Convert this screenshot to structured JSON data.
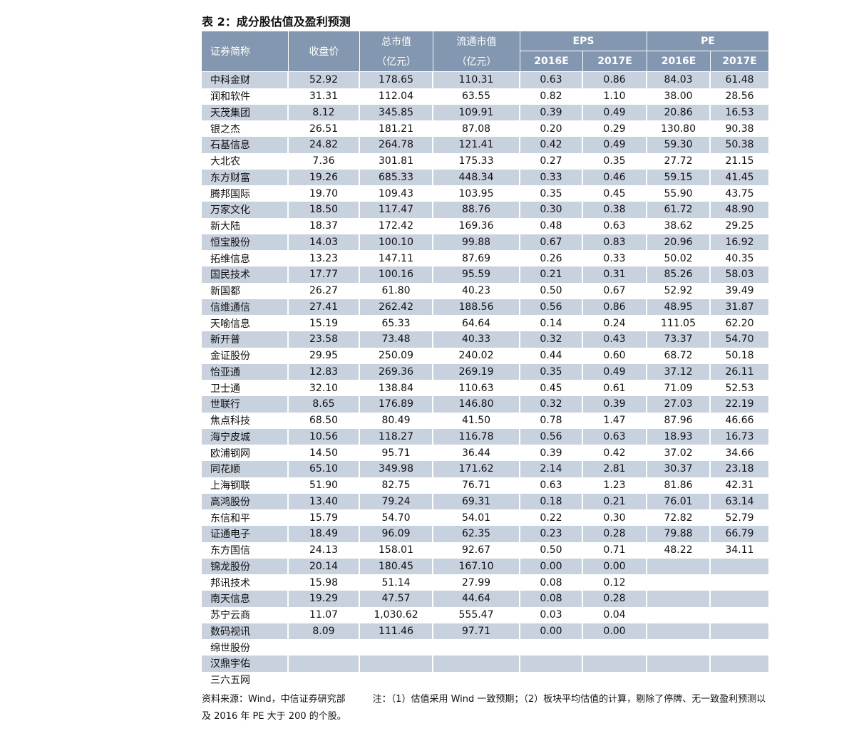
{
  "title": "表 2：成分股估值及盈利预测",
  "table": {
    "header": {
      "name": "证券简称",
      "close": "收盘价",
      "total_cap": [
        "总市值",
        "（亿元）"
      ],
      "float_cap": [
        "流通市值",
        "（亿元）"
      ],
      "eps": {
        "label": "EPS",
        "years": [
          "2016E",
          "2017E"
        ]
      },
      "pe": {
        "label": "PE",
        "years": [
          "2016E",
          "2017E"
        ]
      }
    },
    "rows": [
      [
        "中科金财",
        "52.92",
        "178.65",
        "110.31",
        "0.63",
        "0.86",
        "84.03",
        "61.48"
      ],
      [
        "润和软件",
        "31.31",
        "112.04",
        "63.55",
        "0.82",
        "1.10",
        "38.00",
        "28.56"
      ],
      [
        "天茂集团",
        "8.12",
        "345.85",
        "109.91",
        "0.39",
        "0.49",
        "20.86",
        "16.53"
      ],
      [
        "银之杰",
        "26.51",
        "181.21",
        "87.08",
        "0.20",
        "0.29",
        "130.80",
        "90.38"
      ],
      [
        "石基信息",
        "24.82",
        "264.78",
        "121.41",
        "0.42",
        "0.49",
        "59.30",
        "50.38"
      ],
      [
        "大北农",
        "7.36",
        "301.81",
        "175.33",
        "0.27",
        "0.35",
        "27.72",
        "21.15"
      ],
      [
        "东方财富",
        "19.26",
        "685.33",
        "448.34",
        "0.33",
        "0.46",
        "59.15",
        "41.45"
      ],
      [
        "腾邦国际",
        "19.70",
        "109.43",
        "103.95",
        "0.35",
        "0.45",
        "55.90",
        "43.75"
      ],
      [
        "万家文化",
        "18.50",
        "117.47",
        "88.76",
        "0.30",
        "0.38",
        "61.72",
        "48.90"
      ],
      [
        "新大陆",
        "18.37",
        "172.42",
        "169.36",
        "0.48",
        "0.63",
        "38.62",
        "29.25"
      ],
      [
        "恒宝股份",
        "14.03",
        "100.10",
        "99.88",
        "0.67",
        "0.83",
        "20.96",
        "16.92"
      ],
      [
        "拓维信息",
        "13.23",
        "147.11",
        "87.69",
        "0.26",
        "0.33",
        "50.02",
        "40.35"
      ],
      [
        "国民技术",
        "17.77",
        "100.16",
        "95.59",
        "0.21",
        "0.31",
        "85.26",
        "58.03"
      ],
      [
        "新国都",
        "26.27",
        "61.80",
        "40.23",
        "0.50",
        "0.67",
        "52.92",
        "39.49"
      ],
      [
        "信维通信",
        "27.41",
        "262.42",
        "188.56",
        "0.56",
        "0.86",
        "48.95",
        "31.87"
      ],
      [
        "天喻信息",
        "15.19",
        "65.33",
        "64.64",
        "0.14",
        "0.24",
        "111.05",
        "62.20"
      ],
      [
        "新开普",
        "23.58",
        "73.48",
        "40.33",
        "0.32",
        "0.43",
        "73.37",
        "54.70"
      ],
      [
        "金证股份",
        "29.95",
        "250.09",
        "240.02",
        "0.44",
        "0.60",
        "68.72",
        "50.18"
      ],
      [
        "怡亚通",
        "12.83",
        "269.36",
        "269.19",
        "0.35",
        "0.49",
        "37.12",
        "26.11"
      ],
      [
        "卫士通",
        "32.10",
        "138.84",
        "110.63",
        "0.45",
        "0.61",
        "71.09",
        "52.53"
      ],
      [
        "世联行",
        "8.65",
        "176.89",
        "146.80",
        "0.32",
        "0.39",
        "27.03",
        "22.19"
      ],
      [
        "焦点科技",
        "68.50",
        "80.49",
        "41.50",
        "0.78",
        "1.47",
        "87.96",
        "46.66"
      ],
      [
        "海宁皮城",
        "10.56",
        "118.27",
        "116.78",
        "0.56",
        "0.63",
        "18.93",
        "16.73"
      ],
      [
        "欧浦钢网",
        "14.50",
        "95.71",
        "36.44",
        "0.39",
        "0.42",
        "37.02",
        "34.66"
      ],
      [
        "同花顺",
        "65.10",
        "349.98",
        "171.62",
        "2.14",
        "2.81",
        "30.37",
        "23.18"
      ],
      [
        "上海钢联",
        "51.90",
        "82.75",
        "76.71",
        "0.63",
        "1.23",
        "81.86",
        "42.31"
      ],
      [
        "高鸿股份",
        "13.40",
        "79.24",
        "69.31",
        "0.18",
        "0.21",
        "76.01",
        "63.14"
      ],
      [
        "东信和平",
        "15.79",
        "54.70",
        "54.01",
        "0.22",
        "0.30",
        "72.82",
        "52.79"
      ],
      [
        "证通电子",
        "18.49",
        "96.09",
        "62.35",
        "0.23",
        "0.28",
        "79.88",
        "66.79"
      ],
      [
        "东方国信",
        "24.13",
        "158.01",
        "92.67",
        "0.50",
        "0.71",
        "48.22",
        "34.11"
      ],
      [
        "锦龙股份",
        "20.14",
        "180.45",
        "167.10",
        "0.00",
        "0.00"
      ],
      [
        "邦讯技术",
        "15.98",
        "51.14",
        "27.99",
        "0.08",
        "0.12"
      ],
      [
        "南天信息",
        "19.29",
        "47.57",
        "44.64",
        "0.08",
        "0.28"
      ],
      [
        "苏宁云商",
        "11.07",
        "1,030.62",
        "555.47",
        "0.03",
        "0.04"
      ],
      [
        "数码视讯",
        "8.09",
        "111.46",
        "97.71",
        "0.00",
        "0.00"
      ],
      [
        "绵世股份"
      ],
      [
        "汉鼎宇佑"
      ],
      [
        "三六五网"
      ]
    ]
  },
  "footer": {
    "source": "资料来源：Wind，中信证券研究部",
    "note": "注：（1）估值采用 Wind 一致预期；（2）板块平均估值的计算，剔除了停牌、无一致盈利预测以及 2016 年 PE 大于 200 的个股。"
  }
}
